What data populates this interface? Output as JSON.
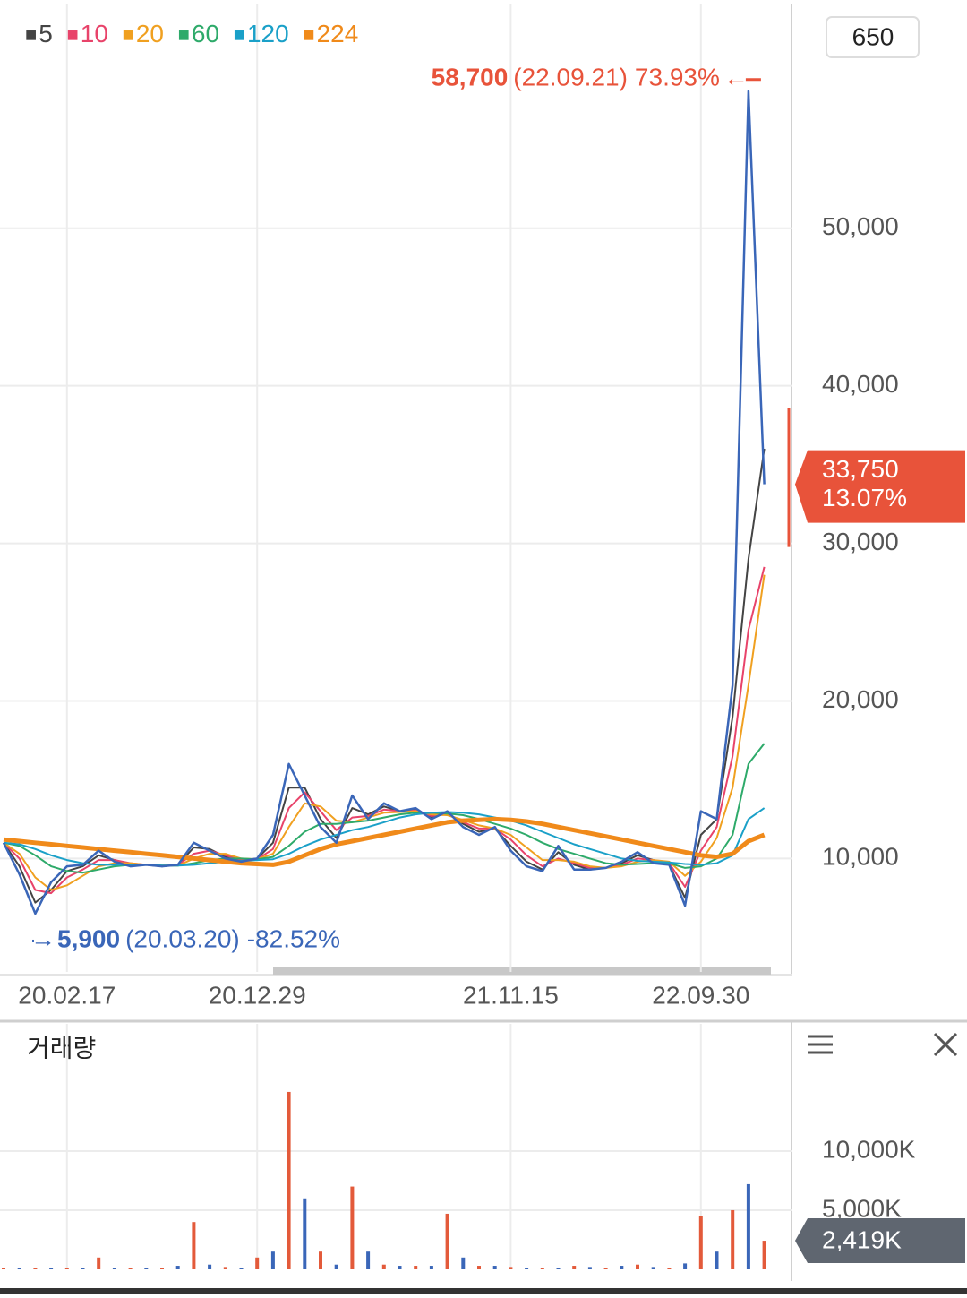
{
  "chart_data": [
    {
      "type": "line",
      "period_box": "650",
      "categories": [
        null,
        null,
        null,
        null,
        "20.02.17",
        null,
        null,
        null,
        null,
        null,
        null,
        null,
        null,
        null,
        null,
        null,
        "20.12.29",
        null,
        null,
        null,
        null,
        null,
        null,
        null,
        null,
        null,
        null,
        null,
        null,
        null,
        null,
        null,
        "21.11.15",
        null,
        null,
        null,
        null,
        null,
        null,
        null,
        null,
        null,
        null,
        null,
        "22.09.30",
        null,
        null,
        null,
        null
      ],
      "price": {
        "color": "#3a66b8",
        "values": [
          11000,
          9000,
          6500,
          8500,
          9500,
          9600,
          10500,
          9800,
          9500,
          9600,
          9500,
          9600,
          11000,
          10500,
          10000,
          9800,
          10000,
          11500,
          16000,
          14000,
          12000,
          11000,
          14000,
          12500,
          13500,
          13000,
          13200,
          12500,
          13000,
          12000,
          11500,
          12000,
          10500,
          9500,
          9200,
          10800,
          9300,
          9300,
          9400,
          9800,
          10400,
          9700,
          9600,
          7000,
          13000,
          12500,
          21000,
          58700,
          33750
        ]
      },
      "series": [
        {
          "name": "5",
          "color": "#444444",
          "values": [
            11000,
            9500,
            7200,
            8000,
            9200,
            9500,
            10200,
            9900,
            9600,
            9600,
            9500,
            9600,
            10700,
            10600,
            10100,
            9900,
            10000,
            11000,
            14500,
            14500,
            12500,
            11300,
            13200,
            12800,
            13300,
            13000,
            13100,
            12600,
            12900,
            12200,
            11700,
            11900,
            10800,
            9800,
            9300,
            10400,
            9600,
            9300,
            9400,
            9700,
            10200,
            9900,
            9600,
            7500,
            11500,
            12500,
            19000,
            29000,
            36000
          ]
        },
        {
          "name": "10",
          "color": "#e8436a",
          "values": [
            11000,
            10000,
            8000,
            7800,
            8800,
            9300,
            9900,
            9900,
            9700,
            9600,
            9500,
            9600,
            10300,
            10500,
            10200,
            9900,
            9950,
            10600,
            13200,
            14200,
            13000,
            11800,
            12600,
            12700,
            13100,
            13000,
            13050,
            12700,
            12800,
            12300,
            11900,
            11900,
            11200,
            10200,
            9500,
            10000,
            9700,
            9400,
            9400,
            9600,
            10000,
            9900,
            9700,
            8200,
            10500,
            12000,
            16500,
            24500,
            28500
          ]
        },
        {
          "name": "20",
          "color": "#f0a020",
          "values": [
            11000,
            10300,
            8800,
            8000,
            8300,
            8900,
            9500,
            9700,
            9700,
            9600,
            9550,
            9550,
            10000,
            10300,
            10300,
            10000,
            9950,
            10300,
            12000,
            13500,
            13300,
            12400,
            12300,
            12600,
            12900,
            12950,
            13000,
            12800,
            12750,
            12450,
            12100,
            11900,
            11500,
            10700,
            9900,
            9900,
            9800,
            9500,
            9400,
            9500,
            9800,
            9900,
            9800,
            8900,
            9800,
            11300,
            14500,
            21000,
            28000
          ]
        },
        {
          "name": "60",
          "color": "#2eaa6a",
          "values": [
            11000,
            10800,
            10200,
            9500,
            9200,
            9100,
            9300,
            9500,
            9600,
            9600,
            9550,
            9550,
            9700,
            9900,
            10000,
            10000,
            9950,
            10100,
            10800,
            11700,
            12200,
            12200,
            12300,
            12400,
            12600,
            12800,
            12900,
            12900,
            12850,
            12750,
            12500,
            12200,
            11900,
            11500,
            11000,
            10600,
            10300,
            10000,
            9700,
            9600,
            9650,
            9700,
            9700,
            9400,
            9500,
            10000,
            11500,
            16000,
            17300
          ]
        },
        {
          "name": "120",
          "color": "#1aa0c8",
          "values": [
            11000,
            10900,
            10600,
            10200,
            9900,
            9700,
            9600,
            9600,
            9600,
            9600,
            9550,
            9550,
            9600,
            9700,
            9800,
            9850,
            9900,
            9950,
            10300,
            10800,
            11200,
            11500,
            11800,
            12000,
            12300,
            12600,
            12800,
            12900,
            12950,
            12900,
            12800,
            12600,
            12400,
            12100,
            11700,
            11300,
            10900,
            10600,
            10300,
            10000,
            9850,
            9800,
            9750,
            9650,
            9600,
            9700,
            10200,
            12500,
            13200
          ]
        },
        {
          "name": "224",
          "color": "#f08a1a",
          "values": [
            11200,
            11100,
            11000,
            10900,
            10800,
            10700,
            10600,
            10500,
            10400,
            10300,
            10200,
            10100,
            10000,
            9900,
            9800,
            9700,
            9650,
            9600,
            9800,
            10200,
            10600,
            10900,
            11100,
            11300,
            11500,
            11700,
            11900,
            12100,
            12300,
            12400,
            12450,
            12500,
            12450,
            12350,
            12200,
            12000,
            11800,
            11600,
            11400,
            11200,
            11000,
            10800,
            10600,
            10400,
            10200,
            10100,
            10300,
            11100,
            11500
          ]
        }
      ],
      "ylim": [
        2800,
        64200
      ],
      "yticks": [
        {
          "value": 10000,
          "label": "10,000"
        },
        {
          "value": 20000,
          "label": "20,000"
        },
        {
          "value": 30000,
          "label": "30,000"
        },
        {
          "value": 40000,
          "label": "40,000"
        },
        {
          "value": 50000,
          "label": "50,000"
        }
      ],
      "grid": true,
      "max_note": {
        "value": 58700,
        "label": "58,700",
        "date": "(22.09.21)",
        "change": "73.93%"
      },
      "min_note": {
        "value": 5900,
        "label": "5,900",
        "date": "(20.03.20)",
        "change": "-82.52%"
      },
      "last": {
        "value": 33750,
        "label": "33,750",
        "change": "13.07%",
        "color": "#e8533a"
      }
    },
    {
      "type": "bar",
      "title": "거래량",
      "color": "#e35a3a",
      "values": [
        80,
        80,
        150,
        100,
        80,
        80,
        1000,
        100,
        80,
        80,
        80,
        300,
        4000,
        400,
        200,
        150,
        1000,
        1500,
        15000,
        6000,
        1500,
        400,
        7000,
        1500,
        400,
        300,
        300,
        300,
        4700,
        1000,
        300,
        300,
        200,
        150,
        150,
        150,
        300,
        200,
        150,
        300,
        400,
        200,
        150,
        500,
        4500,
        1500,
        5000,
        7200,
        2419
      ],
      "ylim": [
        0,
        20600
      ],
      "yticks": [
        {
          "value": 5000,
          "label": "5,000K"
        },
        {
          "value": 10000,
          "label": "10,000K"
        }
      ],
      "last": {
        "value": 2419,
        "label": "2,419K",
        "color": "#5f6670"
      }
    }
  ]
}
